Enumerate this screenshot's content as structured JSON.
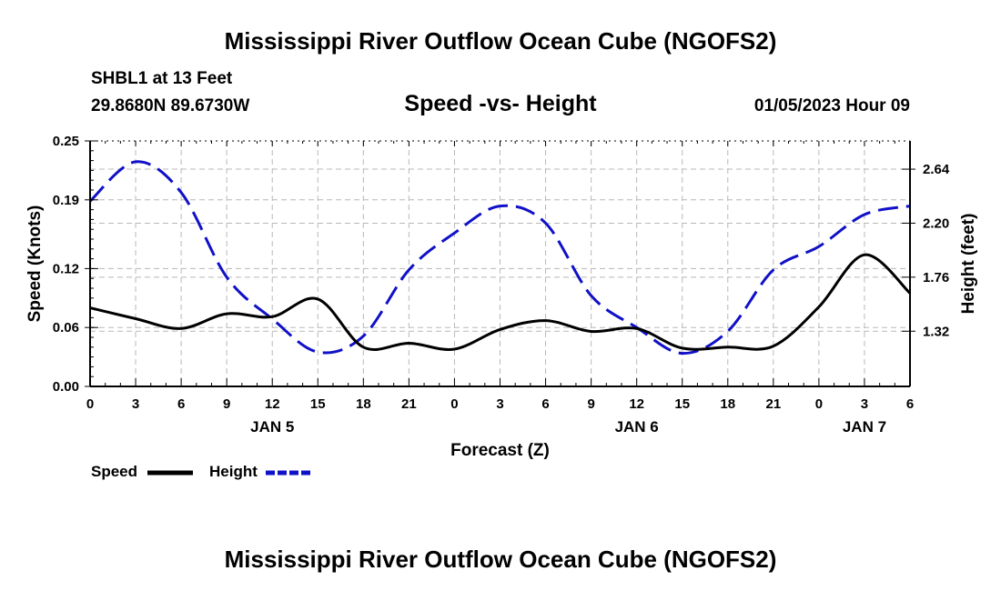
{
  "header": {
    "title_top": "Mississippi River Outflow Ocean Cube (NGOFS2)",
    "station": "SHBL1 at 13 Feet",
    "coords": "29.8680N  89.6730W",
    "subtitle": "Speed -vs- Height",
    "datetime": "01/05/2023 Hour 09",
    "title_bottom": "Mississippi River Outflow Ocean Cube (NGOFS2)"
  },
  "legend": {
    "speed_label": "Speed",
    "height_label": "Height"
  },
  "colors": {
    "speed": "#000000",
    "height": "#1010c8",
    "grid": "#b8b8b8"
  },
  "chart_data": {
    "type": "line",
    "title": "Speed -vs- Height",
    "xlabel": "Forecast (Z)",
    "ylabel": "Speed (Knots)",
    "ylabel_right": "Height (feet)",
    "xlim": [
      0,
      54
    ],
    "ylim": [
      0,
      0.25
    ],
    "ylim_right": [
      0.87,
      2.87
    ],
    "x_ticks": [
      0,
      3,
      6,
      9,
      12,
      15,
      18,
      21,
      24,
      27,
      30,
      33,
      36,
      39,
      42,
      45,
      48,
      51,
      54
    ],
    "x_tick_labels": [
      "0",
      "3",
      "6",
      "9",
      "12",
      "15",
      "18",
      "21",
      "0",
      "3",
      "6",
      "9",
      "12",
      "15",
      "18",
      "21",
      "0",
      "3",
      "6"
    ],
    "date_labels": [
      {
        "x": 12,
        "label": "JAN 5"
      },
      {
        "x": 36,
        "label": "JAN 6"
      },
      {
        "x": 51,
        "label": "JAN 7"
      }
    ],
    "y_ticks_left": [
      0.0,
      0.06,
      0.12,
      0.19,
      0.25
    ],
    "y_tick_labels_left": [
      "0.00",
      "0.06",
      "0.12",
      "0.19",
      "0.25"
    ],
    "y_ticks_right": [
      1.32,
      1.76,
      2.2,
      2.64
    ],
    "y_tick_labels_right": [
      "1.32",
      "1.76",
      "2.20",
      "2.64"
    ],
    "grid": true,
    "series": [
      {
        "name": "Speed",
        "axis": "left",
        "style": "solid",
        "x": [
          0,
          3,
          6,
          9,
          12,
          15,
          18,
          21,
          24,
          27,
          30,
          33,
          36,
          39,
          42,
          45,
          48,
          51,
          54
        ],
        "values": [
          0.08,
          0.069,
          0.059,
          0.074,
          0.071,
          0.089,
          0.04,
          0.044,
          0.038,
          0.058,
          0.067,
          0.056,
          0.059,
          0.039,
          0.04,
          0.041,
          0.081,
          0.134,
          0.095
        ]
      },
      {
        "name": "Height",
        "axis": "right",
        "style": "dashed",
        "x": [
          0,
          3,
          6,
          9,
          12,
          15,
          18,
          21,
          24,
          27,
          30,
          33,
          36,
          39,
          42,
          45,
          48,
          51,
          54
        ],
        "values": [
          2.38,
          2.7,
          2.45,
          1.76,
          1.42,
          1.15,
          1.28,
          1.82,
          2.12,
          2.34,
          2.2,
          1.61,
          1.35,
          1.14,
          1.32,
          1.82,
          2.01,
          2.27,
          2.34
        ]
      }
    ]
  }
}
